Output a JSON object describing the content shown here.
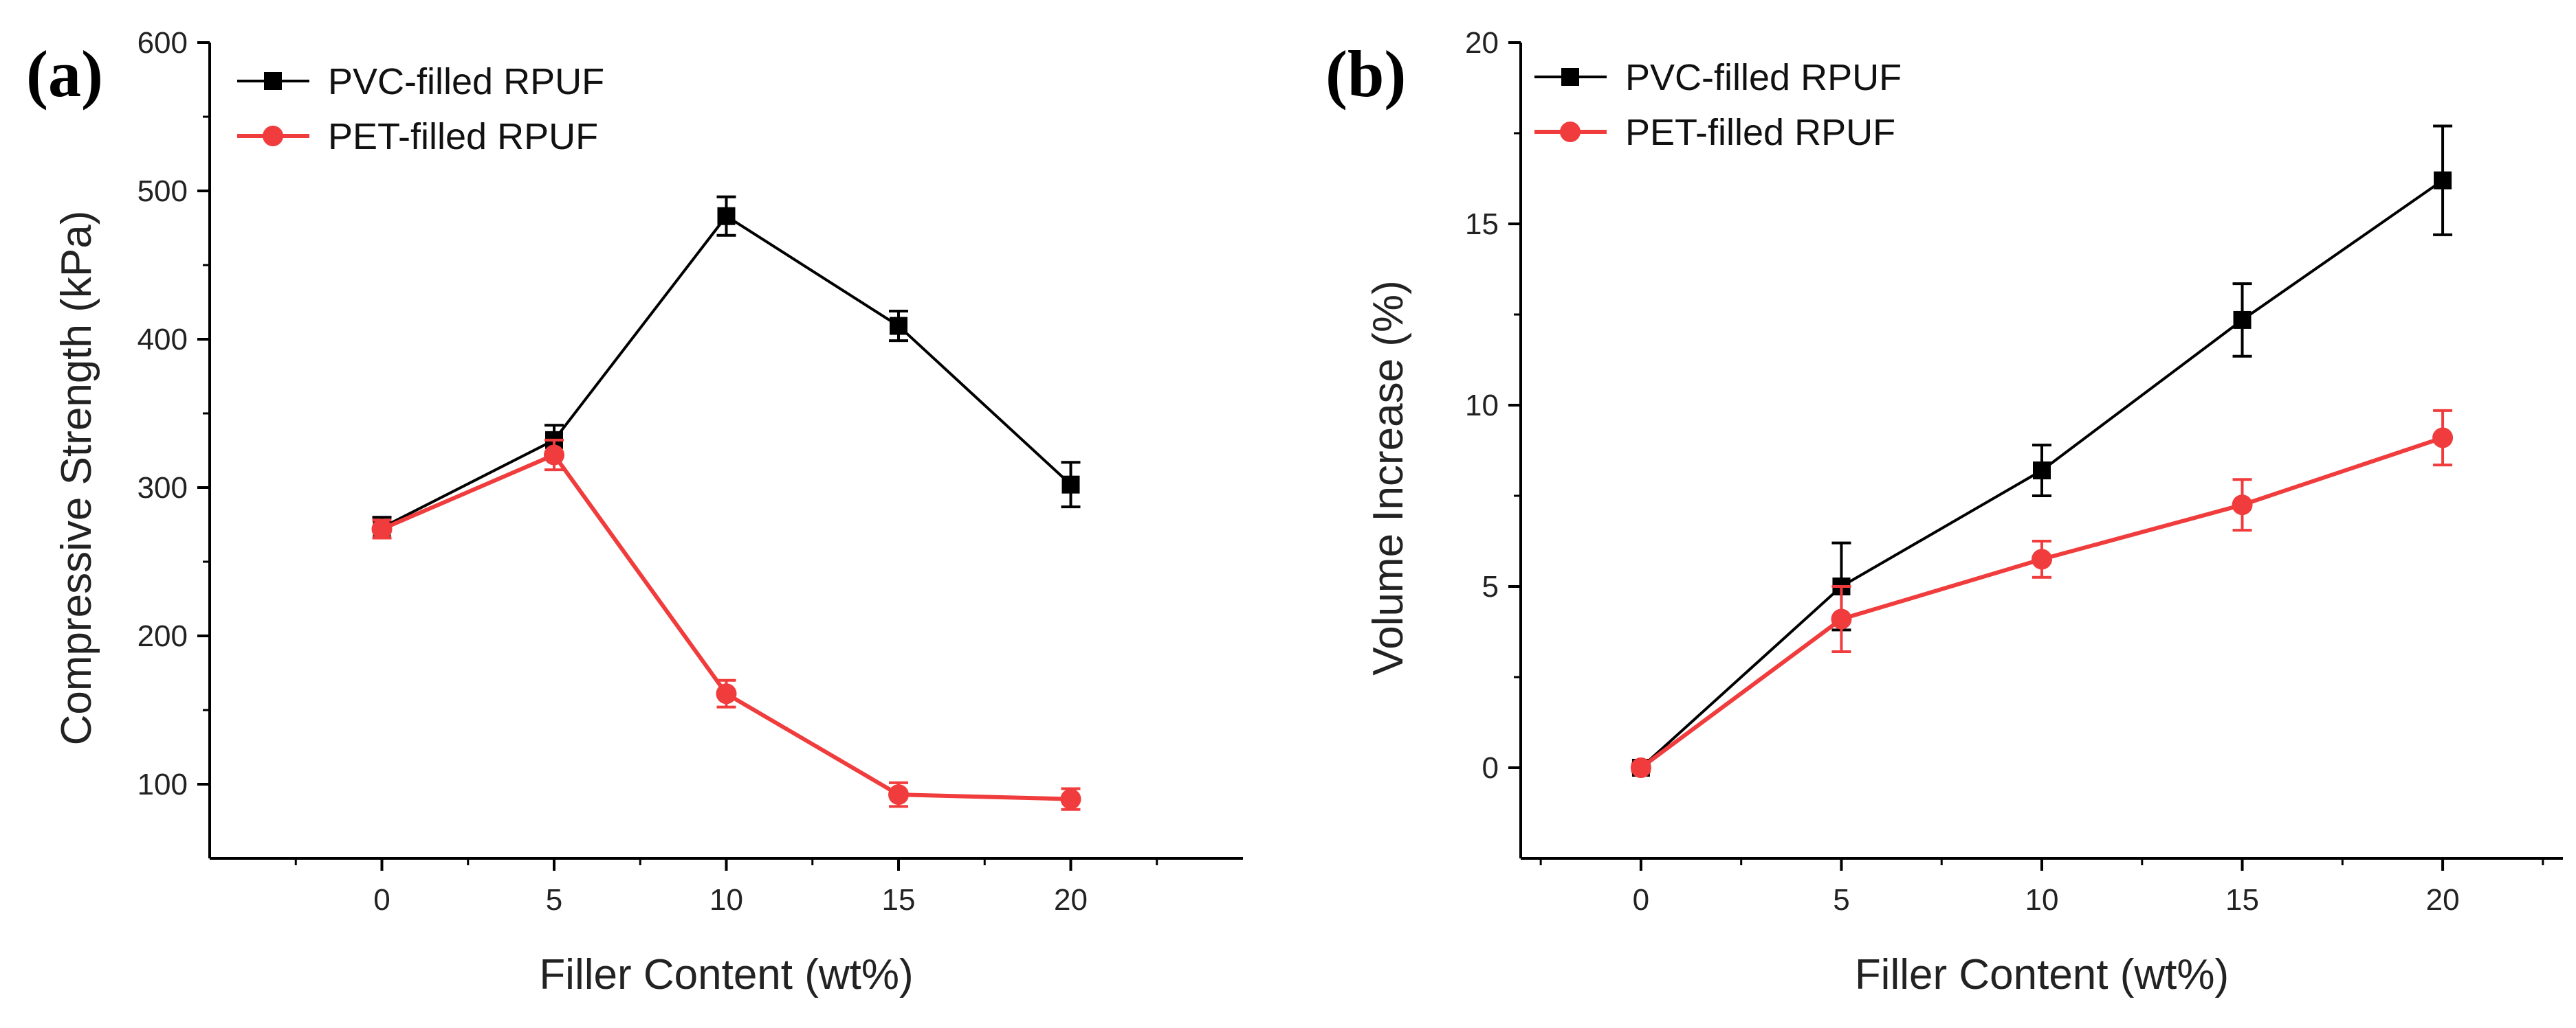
{
  "chart_data": [
    {
      "panel_label": "(a)",
      "type": "line",
      "xlabel": "Filler Content (wt%)",
      "ylabel": "Compressive Strength (kPa)",
      "xlim": [
        -5,
        25
      ],
      "ylim": [
        50,
        600
      ],
      "x_ticks": [
        0,
        5,
        10,
        15,
        20
      ],
      "y_ticks": [
        100,
        200,
        300,
        400,
        500,
        600
      ],
      "legend_position": "top-left",
      "x": [
        0,
        5,
        10,
        15,
        20
      ],
      "series": [
        {
          "name": "PVC-filled RPUF",
          "color": "#000000",
          "marker": "square",
          "values": [
            273,
            332,
            483,
            409,
            302
          ],
          "errors": [
            7,
            10,
            13,
            10,
            15
          ]
        },
        {
          "name": "PET-filled RPUF",
          "color": "#f03c3c",
          "marker": "circle",
          "values": [
            272,
            322,
            161,
            93,
            90
          ],
          "errors": [
            6,
            10,
            9,
            8,
            7
          ]
        }
      ]
    },
    {
      "panel_label": "(b)",
      "type": "line",
      "xlabel": "Filler Content (wt%)",
      "ylabel": "Volume Increase (%)",
      "xlim": [
        -3,
        23
      ],
      "ylim": [
        -2.5,
        20
      ],
      "x_ticks": [
        0,
        5,
        10,
        15,
        20
      ],
      "y_ticks": [
        0,
        5,
        10,
        15,
        20
      ],
      "legend_position": "top-left",
      "x": [
        0,
        5,
        10,
        15,
        20
      ],
      "series": [
        {
          "name": "PVC-filled RPUF",
          "color": "#000000",
          "marker": "square",
          "values": [
            0,
            5.0,
            8.2,
            12.35,
            16.2
          ],
          "errors": [
            0.1,
            1.2,
            0.7,
            1.0,
            1.5
          ]
        },
        {
          "name": "PET-filled RPUF",
          "color": "#f03c3c",
          "marker": "circle",
          "values": [
            0,
            4.1,
            5.75,
            7.25,
            9.1
          ],
          "errors": [
            0.1,
            0.9,
            0.5,
            0.7,
            0.75
          ]
        }
      ]
    }
  ]
}
